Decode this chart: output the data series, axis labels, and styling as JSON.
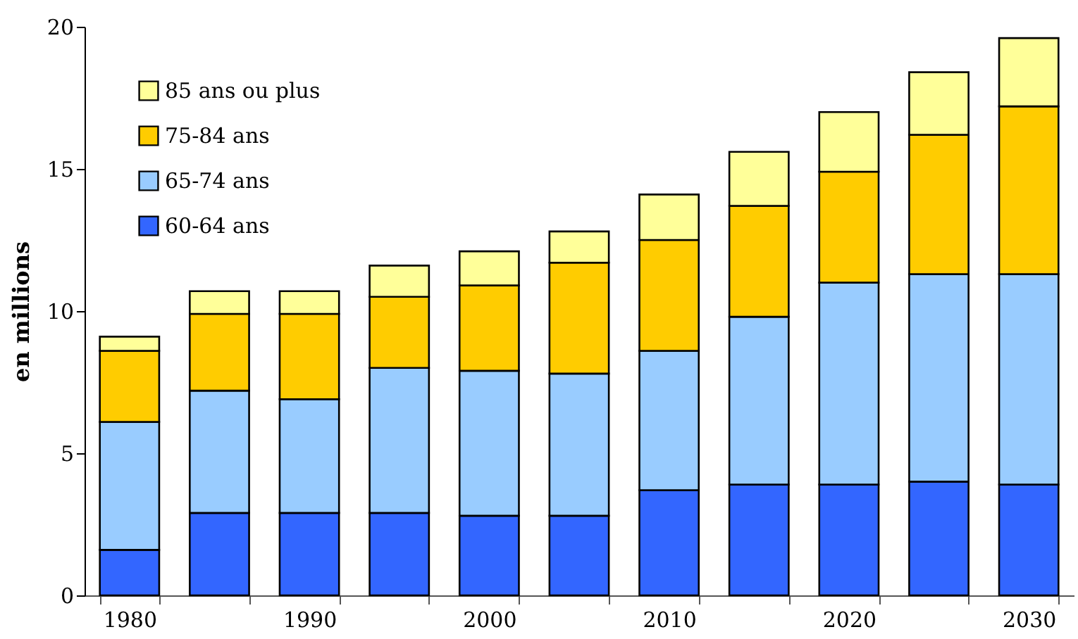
{
  "chart_data": {
    "type": "bar",
    "stacked": true,
    "ylabel": "en millions",
    "categories": [
      "1980",
      null,
      "1990",
      null,
      "2000",
      null,
      "2010",
      null,
      "2020",
      null,
      "2030"
    ],
    "series": [
      {
        "name": "60-64 ans",
        "color": "#3366ff",
        "values": [
          1.6,
          2.9,
          2.9,
          2.9,
          2.8,
          2.8,
          3.7,
          3.9,
          3.9,
          4.0,
          3.9
        ]
      },
      {
        "name": "65-74 ans",
        "color": "#99ccff",
        "values": [
          4.5,
          4.3,
          4.0,
          5.1,
          5.1,
          5.0,
          4.9,
          5.9,
          7.1,
          7.3,
          7.4
        ]
      },
      {
        "name": "75-84 ans",
        "color": "#ffcc00",
        "values": [
          2.5,
          2.7,
          3.0,
          2.5,
          3.0,
          3.9,
          3.9,
          3.9,
          3.9,
          4.9,
          5.9
        ]
      },
      {
        "name": "85 ans ou plus",
        "color": "#ffff99",
        "values": [
          0.5,
          0.8,
          0.8,
          1.1,
          1.2,
          1.1,
          1.6,
          1.9,
          2.1,
          2.2,
          2.4
        ]
      }
    ],
    "ylim": [
      0,
      20
    ],
    "yticks": [
      0,
      5,
      10,
      15,
      20
    ],
    "legend": "top left",
    "grid": false
  }
}
